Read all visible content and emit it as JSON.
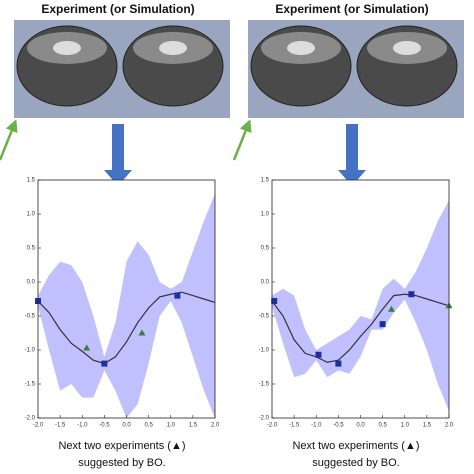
{
  "chart_data": [
    {
      "type": "line",
      "title": "Experiment (or Simulation)",
      "caption": [
        "Next two experiments (▲)",
        "suggested by BO."
      ],
      "x": [
        -2,
        -1.75,
        -1.5,
        -1.25,
        -1,
        -0.75,
        -0.5,
        -0.25,
        0,
        0.25,
        0.5,
        0.75,
        1,
        1.25,
        1.5,
        1.75,
        2
      ],
      "mean": {
        "color": "#333333",
        "values": [
          -0.28,
          -0.45,
          -0.7,
          -0.9,
          -1.02,
          -1.15,
          -1.2,
          -1.1,
          -0.88,
          -0.6,
          -0.38,
          -0.22,
          -0.18,
          -0.15,
          -0.2,
          -0.25,
          -0.3
        ]
      },
      "band": {
        "color": "#b0b0ff",
        "upper": [
          -0.2,
          0.1,
          0.3,
          0.25,
          0.0,
          -0.5,
          -1.1,
          -0.6,
          0.3,
          0.6,
          0.4,
          0.0,
          -0.1,
          0.0,
          0.45,
          0.9,
          1.3
        ],
        "lower": [
          -0.36,
          -1.0,
          -1.6,
          -1.5,
          -1.7,
          -1.7,
          -1.3,
          -1.6,
          -2.0,
          -1.8,
          -1.2,
          -0.5,
          -0.28,
          -0.6,
          -1.1,
          -1.6,
          -2.0
        ]
      },
      "observed": {
        "color": "#1a2fa0",
        "x": [
          -2,
          -0.5,
          1.15
        ],
        "values": [
          -0.28,
          -1.2,
          -0.2
        ]
      },
      "suggested": {
        "color": "#3a7d3a",
        "x": [
          -0.9,
          0.35
        ],
        "values": [
          -0.97,
          -0.75
        ]
      },
      "xlim": [
        -2,
        2
      ],
      "ylim": [
        -2,
        1.5
      ],
      "xticks": [
        {
          "value": -2,
          "label": "-2.0"
        },
        -1.5,
        {
          "value": -1,
          "label": "-1.0"
        },
        -0.5,
        {
          "value": 0,
          "label": "0.0"
        },
        0.5,
        {
          "value": 1,
          "label": "1.0"
        },
        1.5,
        {
          "value": 2,
          "label": "2.0"
        }
      ],
      "yticks": [
        {
          "value": -2,
          "label": "-2.0"
        },
        -1.5,
        {
          "value": -1,
          "label": "-1.0"
        },
        -0.5,
        {
          "value": 0,
          "label": "0.0"
        },
        0.5,
        {
          "value": 1,
          "label": "1.0"
        },
        1.5
      ]
    },
    {
      "type": "line",
      "title": "Experiment (or Simulation)",
      "caption": [
        "Next two experiments (▲)",
        "suggested by BO."
      ],
      "x": [
        -2,
        -1.75,
        -1.5,
        -1.25,
        -1,
        -0.75,
        -0.5,
        -0.25,
        0,
        0.25,
        0.5,
        0.75,
        1,
        1.25,
        1.5,
        1.75,
        2
      ],
      "mean": {
        "color": "#333333",
        "values": [
          -0.28,
          -0.5,
          -0.85,
          -1.05,
          -1.1,
          -1.18,
          -1.15,
          -1.0,
          -0.8,
          -0.62,
          -0.4,
          -0.2,
          -0.18,
          -0.2,
          -0.25,
          -0.3,
          -0.35
        ]
      },
      "band": {
        "color": "#b0b0ff",
        "upper": [
          -0.2,
          -0.1,
          -0.2,
          -0.7,
          -1.0,
          -0.9,
          -0.8,
          -0.7,
          -0.5,
          -0.55,
          -0.1,
          0.05,
          -0.1,
          0.15,
          0.5,
          0.9,
          1.2
        ],
        "lower": [
          -0.36,
          -0.9,
          -1.4,
          -1.35,
          -1.15,
          -1.4,
          -1.3,
          -1.35,
          -1.1,
          -0.7,
          -0.7,
          -0.45,
          -0.26,
          -0.6,
          -1.0,
          -1.5,
          -1.9
        ]
      },
      "observed": {
        "color": "#1a2fa0",
        "x": [
          -1.95,
          -0.95,
          -0.5,
          0.5,
          1.15
        ],
        "values": [
          -0.28,
          -1.07,
          -1.2,
          -0.62,
          -0.18
        ]
      },
      "suggested": {
        "color": "#3a7d3a",
        "x": [
          0.7,
          2.0
        ],
        "values": [
          -0.4,
          -0.35
        ]
      },
      "xlim": [
        -2,
        2
      ],
      "ylim": [
        -2,
        1.5
      ],
      "xticks": [
        {
          "value": -2,
          "label": "-2.0"
        },
        -1.5,
        {
          "value": -1,
          "label": "-1.0"
        },
        -0.5,
        {
          "value": 0,
          "label": "0.0"
        },
        0.5,
        {
          "value": 1,
          "label": "1.0"
        },
        1.5,
        {
          "value": 2,
          "label": "2.0"
        }
      ],
      "yticks": [
        {
          "value": -2,
          "label": "-2.0"
        },
        -1.5,
        {
          "value": -1,
          "label": "-1.0"
        },
        -0.5,
        {
          "value": 0,
          "label": "0.0"
        },
        0.5,
        {
          "value": 1,
          "label": "1.0"
        },
        1.5
      ]
    }
  ]
}
